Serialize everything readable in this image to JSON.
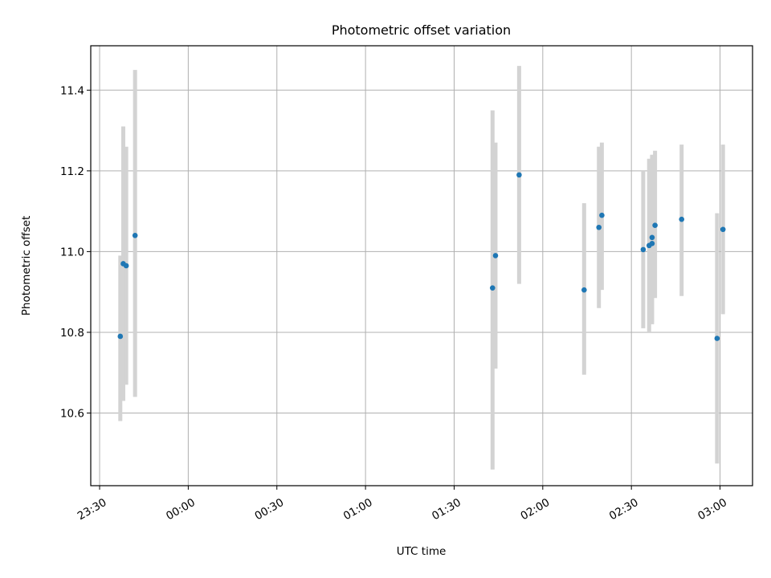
{
  "chart_data": {
    "type": "scatter",
    "title": "Photometric offset variation",
    "xlabel": "UTC time",
    "ylabel": "Photometric offset",
    "x_range": [
      "23:27",
      "03:11"
    ],
    "y_range": [
      10.42,
      11.51
    ],
    "x_ticks": [
      "23:30",
      "00:00",
      "00:30",
      "01:00",
      "01:30",
      "02:00",
      "02:30",
      "03:00"
    ],
    "y_ticks": [
      10.6,
      10.8,
      11.0,
      11.2,
      11.4
    ],
    "grid": true,
    "marker_color": "#1f77b4",
    "errorbar_color": "#d3d3d3",
    "points": [
      {
        "time": "23:37",
        "value": 10.79,
        "low": 10.58,
        "high": 10.99
      },
      {
        "time": "23:38",
        "value": 10.97,
        "low": 10.63,
        "high": 11.31
      },
      {
        "time": "23:39",
        "value": 10.965,
        "low": 10.67,
        "high": 11.26
      },
      {
        "time": "23:42",
        "value": 11.04,
        "low": 10.64,
        "high": 11.45
      },
      {
        "time": "01:43",
        "value": 10.91,
        "low": 10.46,
        "high": 11.35
      },
      {
        "time": "01:44",
        "value": 10.99,
        "low": 10.71,
        "high": 11.27
      },
      {
        "time": "01:52",
        "value": 11.19,
        "low": 10.92,
        "high": 11.46
      },
      {
        "time": "02:14",
        "value": 10.905,
        "low": 10.695,
        "high": 11.12
      },
      {
        "time": "02:19",
        "value": 11.06,
        "low": 10.86,
        "high": 11.26
      },
      {
        "time": "02:20",
        "value": 11.09,
        "low": 10.905,
        "high": 11.27
      },
      {
        "time": "02:34",
        "value": 11.005,
        "low": 10.81,
        "high": 11.2
      },
      {
        "time": "02:36",
        "value": 11.015,
        "low": 10.8,
        "high": 11.23
      },
      {
        "time": "02:37",
        "value": 11.035,
        "low": 10.825,
        "high": 11.24
      },
      {
        "time": "02:37",
        "value": 11.02,
        "low": 10.82,
        "high": 11.235
      },
      {
        "time": "02:38",
        "value": 11.065,
        "low": 10.885,
        "high": 11.25
      },
      {
        "time": "02:47",
        "value": 11.08,
        "low": 10.89,
        "high": 11.265
      },
      {
        "time": "02:59",
        "value": 10.785,
        "low": 10.475,
        "high": 11.095
      },
      {
        "time": "03:01",
        "value": 11.055,
        "low": 10.845,
        "high": 11.265
      }
    ]
  }
}
